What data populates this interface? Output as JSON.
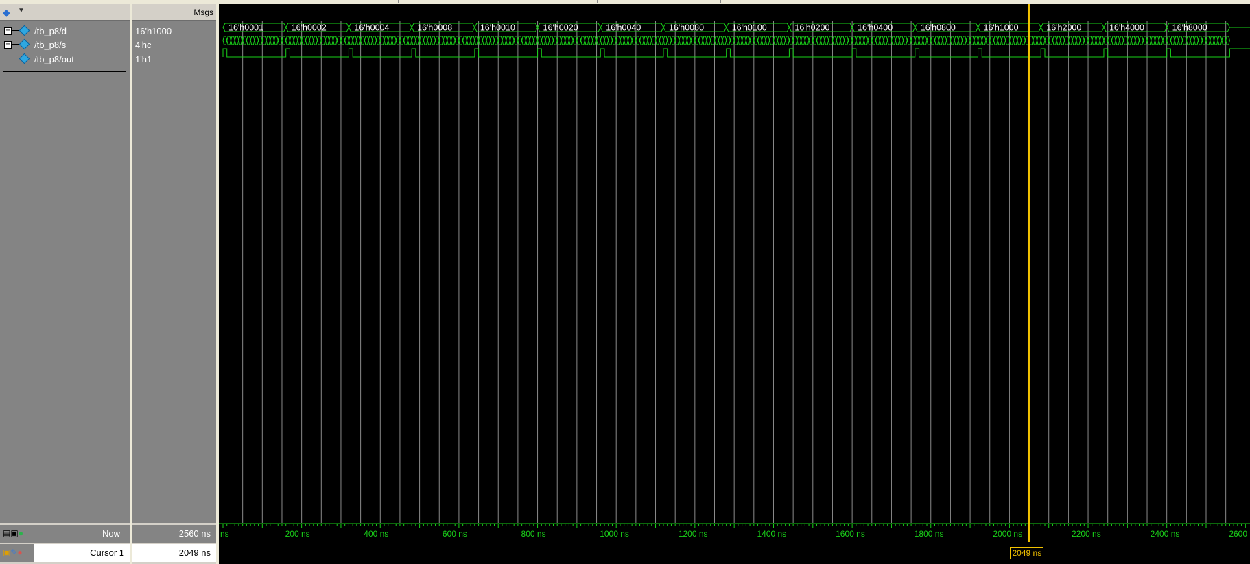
{
  "header": {
    "msgs_label": "Msgs"
  },
  "signals": [
    {
      "name": "/tb_p8/d",
      "value": "16'h1000",
      "expandable": true
    },
    {
      "name": "/tb_p8/s",
      "value": "4'hc",
      "expandable": true
    },
    {
      "name": "/tb_p8/out",
      "value": "1'h1",
      "expandable": false
    }
  ],
  "bus_d_values": [
    "16'h0001",
    "16'h0002",
    "16'h0004",
    "16'h0008",
    "16'h0010",
    "16'h0020",
    "16'h0040",
    "16'h0080",
    "16'h0100",
    "16'h0200",
    "16'h0400",
    "16'h0800",
    "16'h1000",
    "16'h2000",
    "16'h4000",
    "16'h8000"
  ],
  "bus_d_segment_ns": 160,
  "now": {
    "label": "Now",
    "value": "2560 ns"
  },
  "cursor": {
    "label": "Cursor 1",
    "value": "2049 ns",
    "time_ns": 2049
  },
  "ruler": {
    "start_ns": 0,
    "end_ns": 2600,
    "labels": [
      {
        "t": 0,
        "text": "ns"
      },
      {
        "t": 200,
        "text": "200 ns"
      },
      {
        "t": 400,
        "text": "400 ns"
      },
      {
        "t": 600,
        "text": "600 ns"
      },
      {
        "t": 800,
        "text": "800 ns"
      },
      {
        "t": 1000,
        "text": "1000 ns"
      },
      {
        "t": 1200,
        "text": "1200 ns"
      },
      {
        "t": 1400,
        "text": "1400 ns"
      },
      {
        "t": 1600,
        "text": "1600 ns"
      },
      {
        "t": 1800,
        "text": "1800 ns"
      },
      {
        "t": 2000,
        "text": "2000 ns"
      },
      {
        "t": 2200,
        "text": "2200 ns"
      },
      {
        "t": 2400,
        "text": "2400 ns"
      },
      {
        "t": 2600,
        "text": "2600"
      }
    ]
  },
  "colors": {
    "wave": "#19d119",
    "cursor": "#f2c200",
    "grid": "#8a8a8a",
    "pane": "#848484"
  }
}
